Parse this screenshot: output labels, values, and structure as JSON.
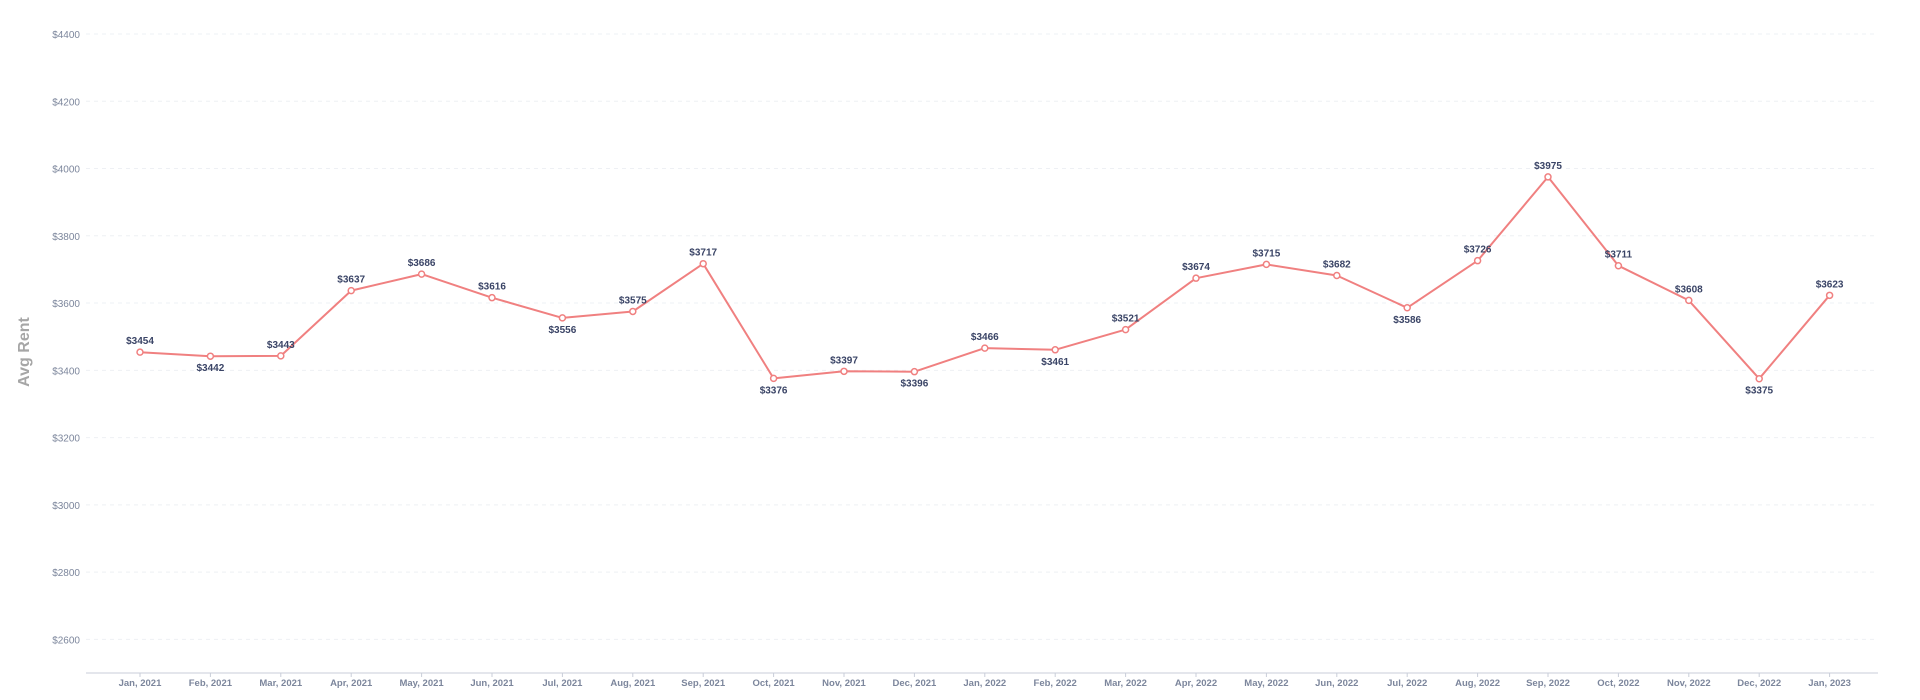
{
  "chart_data": {
    "type": "line",
    "title": "",
    "xlabel": "",
    "ylabel": "Avg Rent",
    "ylim": [
      2500,
      4400
    ],
    "y_ticks": [
      "$2600",
      "$2800",
      "$3000",
      "$3200",
      "$3400",
      "$3600",
      "$3800",
      "$4000",
      "$4200",
      "$4400"
    ],
    "y_tick_values": [
      2600,
      2800,
      3000,
      3200,
      3400,
      3600,
      3800,
      4000,
      4200,
      4400
    ],
    "grid": true,
    "categories": [
      "Jan, 2021",
      "Feb, 2021",
      "Mar, 2021",
      "Apr, 2021",
      "May, 2021",
      "Jun, 2021",
      "Jul, 2021",
      "Aug, 2021",
      "Sep, 2021",
      "Oct, 2021",
      "Nov, 2021",
      "Dec, 2021",
      "Jan, 2022",
      "Feb, 2022",
      "Mar, 2022",
      "Apr, 2022",
      "May, 2022",
      "Jun, 2022",
      "Jul, 2022",
      "Aug, 2022",
      "Sep, 2022",
      "Oct, 2022",
      "Nov, 2022",
      "Dec, 2022",
      "Jan, 2023"
    ],
    "series": [
      {
        "values": [
          3454,
          3442,
          3443,
          3637,
          3686,
          3616,
          3556,
          3575,
          3717,
          3376,
          3397,
          3396,
          3466,
          3461,
          3521,
          3674,
          3715,
          3682,
          3586,
          3726,
          3975,
          3711,
          3608,
          3375,
          3623
        ],
        "labels": [
          "$3454",
          "$3442",
          "$3443",
          "$3637",
          "$3686",
          "$3616",
          "$3556",
          "$3575",
          "$3717",
          "$3376",
          "$3397",
          "$3396",
          "$3466",
          "$3461",
          "$3521",
          "$3674",
          "$3715",
          "$3682",
          "$3586",
          "$3726",
          "$3975",
          "$3711",
          "$3608",
          "$3375",
          "$3623"
        ],
        "label_positions": [
          "above",
          "below",
          "above",
          "above",
          "above",
          "above",
          "below",
          "above",
          "above",
          "below",
          "above",
          "below",
          "above",
          "below",
          "above",
          "above",
          "above",
          "above",
          "below",
          "above",
          "above",
          "above",
          "above",
          "below",
          "above"
        ],
        "color": "#f08080"
      }
    ],
    "colors": {
      "line": "#f08080",
      "marker_fill": "#ffffff",
      "grid": "#eef0f4",
      "axis": "#c9ced9",
      "tick_text": "#7c869c",
      "label_text": "#3a4466",
      "axis_title": "#a6a6a6"
    }
  }
}
